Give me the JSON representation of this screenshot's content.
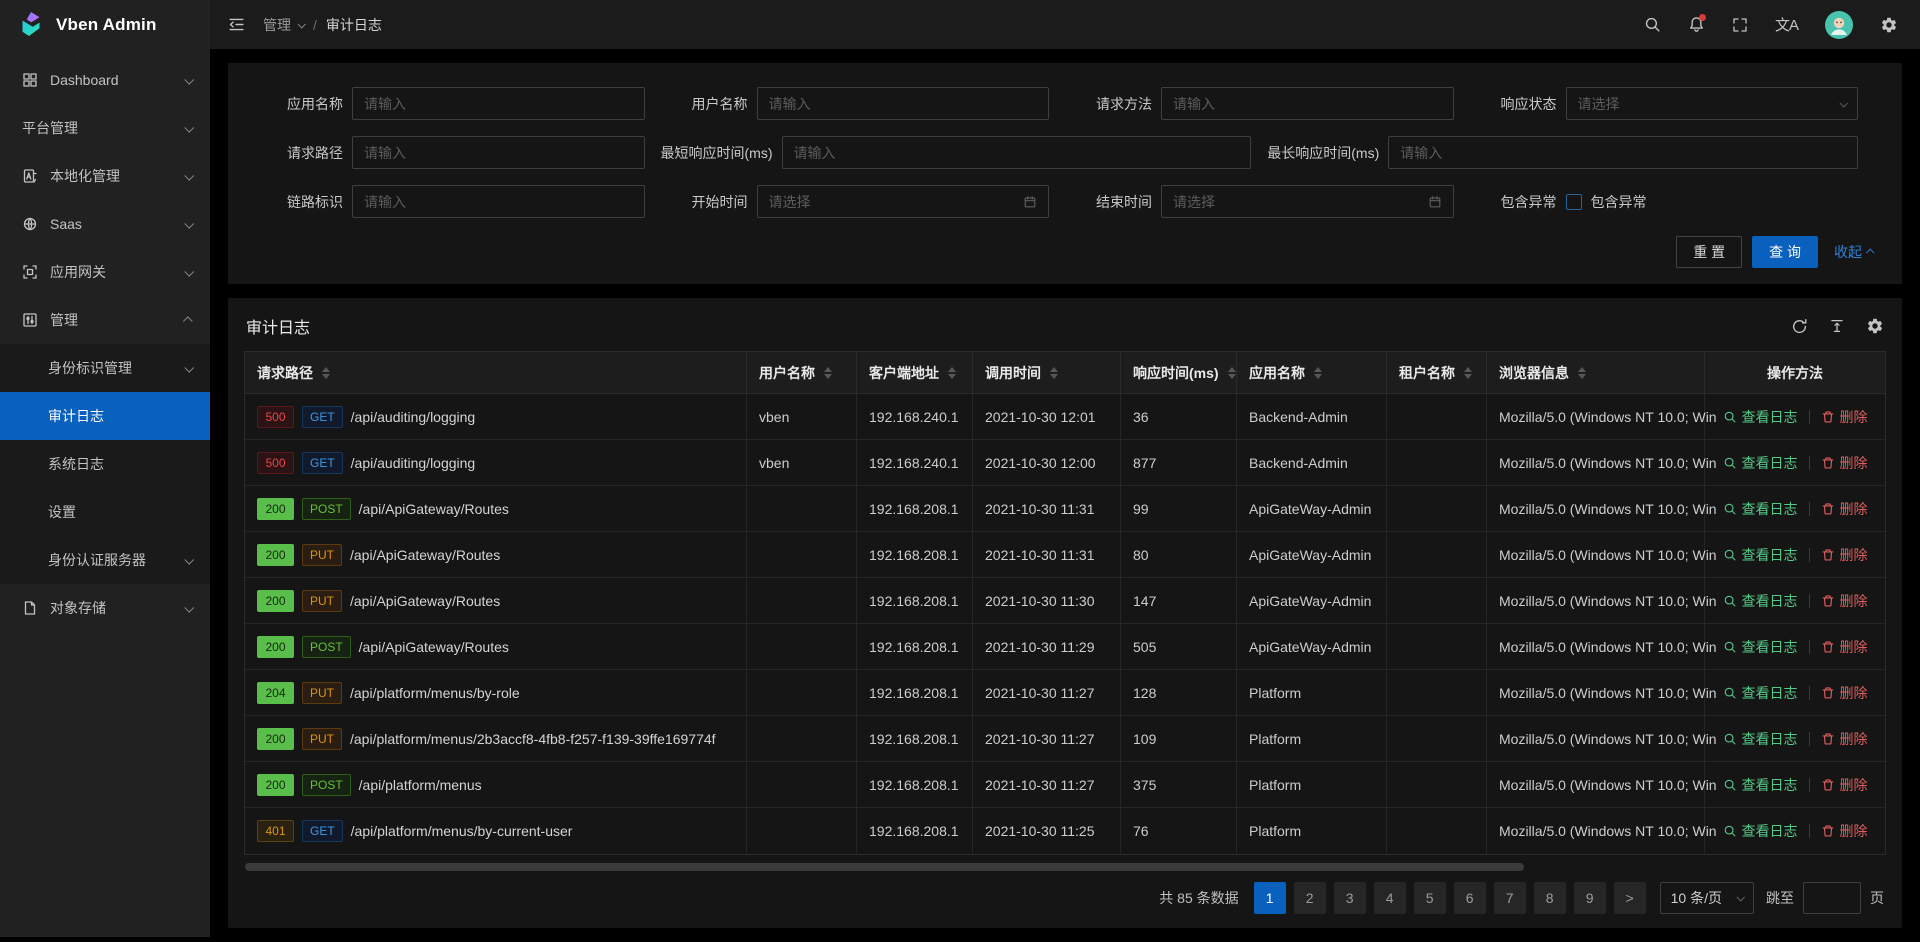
{
  "colors": {
    "primary": "#0960bd",
    "success": "#5abe4b",
    "error": "#e84749",
    "warning": "#d89614",
    "link_blue": "#2f81d9"
  },
  "sidebar": {
    "logo_text": "Vben Admin",
    "items": [
      {
        "id": "dashboard",
        "label": "Dashboard",
        "icon": "dashboard-icon",
        "chevron": "down",
        "type": "top"
      },
      {
        "id": "platform-management",
        "label": "平台管理",
        "icon": "",
        "chevron": "down",
        "type": "top"
      },
      {
        "id": "localization-management",
        "label": "本地化管理",
        "icon": "locale-icon",
        "chevron": "down",
        "type": "top"
      },
      {
        "id": "saas",
        "label": "Saas",
        "icon": "saas-icon",
        "chevron": "down",
        "type": "top"
      },
      {
        "id": "app-gateway",
        "label": "应用网关",
        "icon": "gateway-icon",
        "chevron": "down",
        "type": "top"
      },
      {
        "id": "management",
        "label": "管理",
        "icon": "manage-icon",
        "chevron": "up",
        "type": "top"
      },
      {
        "id": "identity-management",
        "label": "身份标识管理",
        "chevron": "down",
        "type": "sub"
      },
      {
        "id": "audit-log",
        "label": "审计日志",
        "type": "sub",
        "active": true
      },
      {
        "id": "system-log",
        "label": "系统日志",
        "type": "sub"
      },
      {
        "id": "settings",
        "label": "设置",
        "type": "sub"
      },
      {
        "id": "auth-server",
        "label": "身份认证服务器",
        "chevron": "down",
        "type": "sub"
      },
      {
        "id": "object-storage",
        "label": "对象存储",
        "icon": "storage-icon",
        "chevron": "down",
        "type": "top"
      }
    ]
  },
  "header": {
    "breadcrumb": {
      "parent": "管理",
      "separator": "/",
      "current": "审计日志"
    },
    "right_icons": [
      "search-icon",
      "bell-icon",
      "fullscreen-icon",
      "translate-icon",
      "avatar",
      "gear-icon"
    ]
  },
  "filter": {
    "app_name": {
      "label": "应用名称",
      "placeholder": "请输入"
    },
    "user_name": {
      "label": "用户名称",
      "placeholder": "请输入"
    },
    "request_method": {
      "label": "请求方法",
      "placeholder": "请输入"
    },
    "response_status": {
      "label": "响应状态",
      "placeholder": "请选择"
    },
    "request_path": {
      "label": "请求路径",
      "placeholder": "请输入"
    },
    "min_response_time": {
      "label": "最短响应时间(ms)",
      "placeholder": "请输入"
    },
    "max_response_time": {
      "label": "最长响应时间(ms)",
      "placeholder": "请输入"
    },
    "trace_id": {
      "label": "链路标识",
      "placeholder": "请输入"
    },
    "start_time": {
      "label": "开始时间",
      "placeholder": "请选择"
    },
    "end_time": {
      "label": "结束时间",
      "placeholder": "请选择"
    },
    "include_exception": {
      "label": "包含异常",
      "checkbox_label": "包含异常",
      "checked": false
    },
    "buttons": {
      "reset": "重 置",
      "query": "查 询",
      "collapse": "收起"
    }
  },
  "table": {
    "title": "审计日志",
    "toolbar_icons": [
      "refresh-icon",
      "row-height-icon",
      "column-settings-icon"
    ],
    "columns": [
      {
        "key": "path",
        "label": "请求路径",
        "sortable": true
      },
      {
        "key": "user",
        "label": "用户名称",
        "sortable": true
      },
      {
        "key": "client",
        "label": "客户端地址",
        "sortable": true
      },
      {
        "key": "time",
        "label": "调用时间",
        "sortable": true
      },
      {
        "key": "duration",
        "label": "响应时间(ms)",
        "sortable": true
      },
      {
        "key": "app",
        "label": "应用名称",
        "sortable": true
      },
      {
        "key": "tenant",
        "label": "租户名称",
        "sortable": true
      },
      {
        "key": "browser",
        "label": "浏览器信息",
        "sortable": true
      },
      {
        "key": "actions",
        "label": "操作方法",
        "sortable": false
      }
    ],
    "action_labels": {
      "view": "查看日志",
      "delete": "删除"
    },
    "rows": [
      {
        "status": "500",
        "method": "GET",
        "path": "/api/auditing/logging",
        "user": "vben",
        "client": "192.168.240.1",
        "time": "2021-10-30 12:01",
        "duration": "36",
        "app": "Backend-Admin",
        "tenant": "",
        "browser": "Mozilla/5.0 (Windows NT 10.0; Win"
      },
      {
        "status": "500",
        "method": "GET",
        "path": "/api/auditing/logging",
        "user": "vben",
        "client": "192.168.240.1",
        "time": "2021-10-30 12:00",
        "duration": "877",
        "app": "Backend-Admin",
        "tenant": "",
        "browser": "Mozilla/5.0 (Windows NT 10.0; Win"
      },
      {
        "status": "200",
        "method": "POST",
        "path": "/api/ApiGateway/Routes",
        "user": "",
        "client": "192.168.208.1",
        "time": "2021-10-30 11:31",
        "duration": "99",
        "app": "ApiGateWay-Admin",
        "tenant": "",
        "browser": "Mozilla/5.0 (Windows NT 10.0; Win"
      },
      {
        "status": "200",
        "method": "PUT",
        "path": "/api/ApiGateway/Routes",
        "user": "",
        "client": "192.168.208.1",
        "time": "2021-10-30 11:31",
        "duration": "80",
        "app": "ApiGateWay-Admin",
        "tenant": "",
        "browser": "Mozilla/5.0 (Windows NT 10.0; Win"
      },
      {
        "status": "200",
        "method": "PUT",
        "path": "/api/ApiGateway/Routes",
        "user": "",
        "client": "192.168.208.1",
        "time": "2021-10-30 11:30",
        "duration": "147",
        "app": "ApiGateWay-Admin",
        "tenant": "",
        "browser": "Mozilla/5.0 (Windows NT 10.0; Win"
      },
      {
        "status": "200",
        "method": "POST",
        "path": "/api/ApiGateway/Routes",
        "user": "",
        "client": "192.168.208.1",
        "time": "2021-10-30 11:29",
        "duration": "505",
        "app": "ApiGateWay-Admin",
        "tenant": "",
        "browser": "Mozilla/5.0 (Windows NT 10.0; Win"
      },
      {
        "status": "204",
        "method": "PUT",
        "path": "/api/platform/menus/by-role",
        "user": "",
        "client": "192.168.208.1",
        "time": "2021-10-30 11:27",
        "duration": "128",
        "app": "Platform",
        "tenant": "",
        "browser": "Mozilla/5.0 (Windows NT 10.0; Win"
      },
      {
        "status": "200",
        "method": "PUT",
        "path": "/api/platform/menus/2b3accf8-4fb8-f257-f139-39ffe169774f",
        "user": "",
        "client": "192.168.208.1",
        "time": "2021-10-30 11:27",
        "duration": "109",
        "app": "Platform",
        "tenant": "",
        "browser": "Mozilla/5.0 (Windows NT 10.0; Win"
      },
      {
        "status": "200",
        "method": "POST",
        "path": "/api/platform/menus",
        "user": "",
        "client": "192.168.208.1",
        "time": "2021-10-30 11:27",
        "duration": "375",
        "app": "Platform",
        "tenant": "",
        "browser": "Mozilla/5.0 (Windows NT 10.0; Win"
      },
      {
        "status": "401",
        "method": "GET",
        "path": "/api/platform/menus/by-current-user",
        "user": "",
        "client": "192.168.208.1",
        "time": "2021-10-30 11:25",
        "duration": "76",
        "app": "Platform",
        "tenant": "",
        "browser": "Mozilla/5.0 (Windows NT 10.0; Win"
      }
    ]
  },
  "pagination": {
    "total": "共 85 条数据",
    "pages": [
      "1",
      "2",
      "3",
      "4",
      "5",
      "6",
      "7",
      "8",
      "9"
    ],
    "active": "1",
    "next": ">",
    "page_size": "10 条/页",
    "jump_label": "跳至",
    "jump_suffix": "页"
  }
}
